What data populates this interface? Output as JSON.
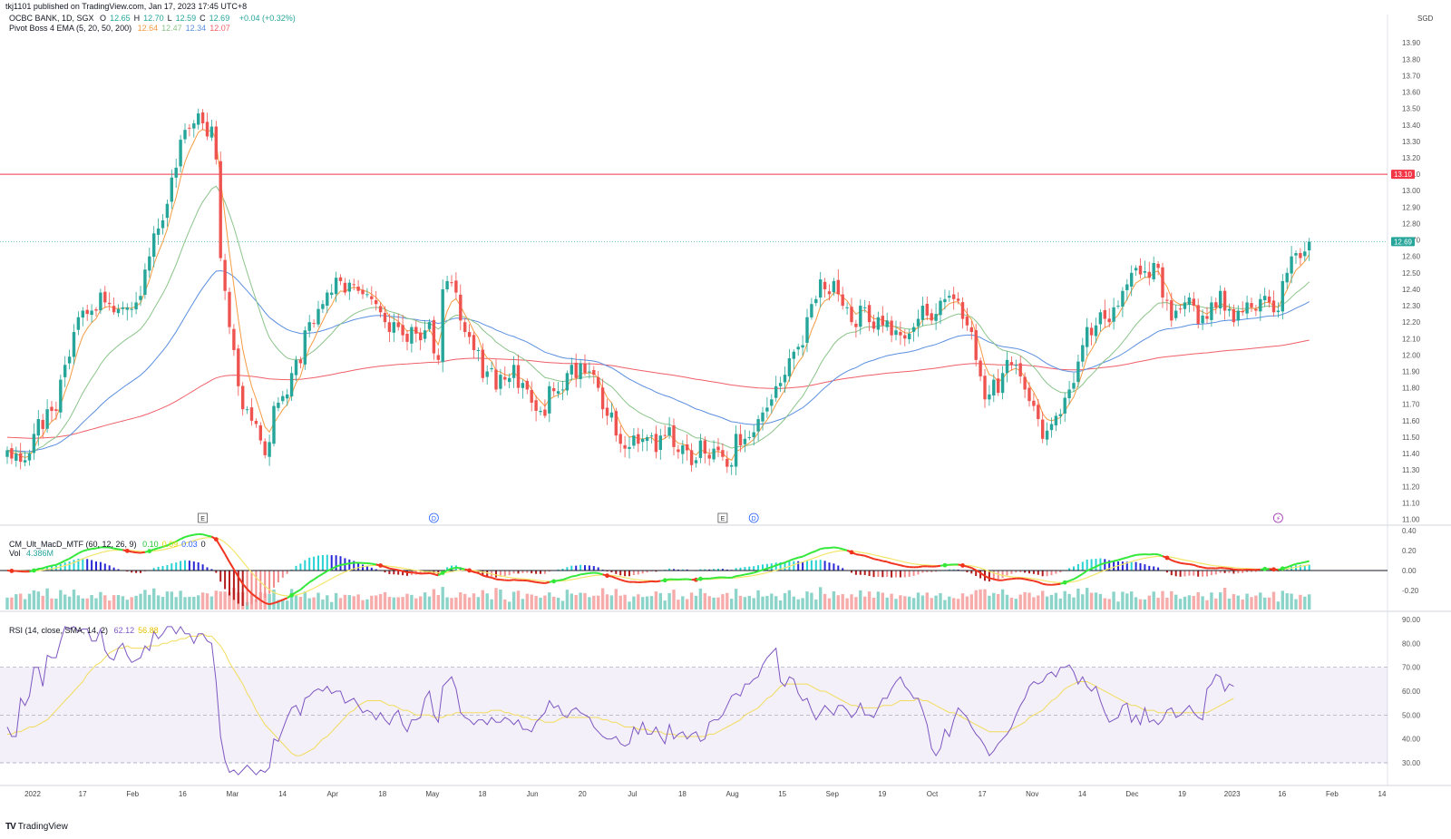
{
  "header": {
    "published": "tkj1101 published on TradingView.com, Jan 17, 2023 17:45 UTC+8",
    "symbol": "OCBC BANK, 1D, SGX",
    "ohlc": [
      {
        "label": "O",
        "value": "12.65"
      },
      {
        "label": "H",
        "value": "12.70"
      },
      {
        "label": "L",
        "value": "12.59"
      },
      {
        "label": "C",
        "value": "12.69"
      }
    ],
    "change": "+0.04 (+0.32%)",
    "ema_title": "Pivot Boss 4 EMA (5, 20, 50, 200)",
    "ema_values": [
      "12.64",
      "12.47",
      "12.34",
      "12.07"
    ],
    "ema_colors": [
      "#f59b42",
      "#8bc48a",
      "#5b8fe0",
      "#ef5f67"
    ],
    "currency": "SGD"
  },
  "macd_header": {
    "title": "CM_Ult_MacD_MTF (60, 12, 26, 9)",
    "values": [
      "0.10",
      "0.09",
      "0.03",
      "0"
    ],
    "colors": [
      "#22c532",
      "#e6d600",
      "#2962ff",
      "#131722"
    ],
    "vol_label": "Vol",
    "vol_value": "4.386M"
  },
  "rsi_header": {
    "title": "RSI (14, close, SMA, 14, 2)",
    "values": [
      "62.12",
      "56.88"
    ],
    "colors": [
      "#7e57c2",
      "#e6c200"
    ]
  },
  "brand": "TradingView",
  "chart_data": {
    "type": "candlestick",
    "symbol": "OCBC BANK",
    "interval": "1D",
    "price_axis": [
      "13.90",
      "13.80",
      "13.70",
      "13.60",
      "13.50",
      "13.40",
      "13.30",
      "13.20",
      "13.10",
      "13.00",
      "12.90",
      "12.80",
      "12.70",
      "12.60",
      "12.50",
      "12.40",
      "12.30",
      "12.20",
      "12.10",
      "12.00",
      "11.90",
      "11.80",
      "11.70",
      "11.60",
      "11.50",
      "11.40",
      "11.30",
      "11.20",
      "11.10",
      "11.00"
    ],
    "ylim": [
      10.97,
      14.05
    ],
    "macd_axis": [
      "0.40",
      "0.20",
      "0.00",
      "-0.20"
    ],
    "rsi_axis": [
      "90.00",
      "80.00",
      "70.00",
      "60.00",
      "50.00",
      "40.00",
      "30.00"
    ],
    "time_axis": [
      "2022",
      "17",
      "Feb",
      "16",
      "Mar",
      "14",
      "Apr",
      "18",
      "May",
      "18",
      "Jun",
      "20",
      "Jul",
      "18",
      "Aug",
      "15",
      "Sep",
      "19",
      "Oct",
      "17",
      "Nov",
      "14",
      "Dec",
      "19",
      "2023",
      "16",
      "Feb",
      "14"
    ],
    "horizontal_line": {
      "value": 13.1,
      "label": "13.10",
      "color": "#f23645"
    },
    "last_price": {
      "value": 12.69,
      "label": "12.69",
      "color": "#26a69a"
    },
    "event_markers": [
      {
        "label": "E",
        "kind": "earnings",
        "x_index": 44
      },
      {
        "label": "D",
        "kind": "dividend",
        "x_index": 96
      },
      {
        "label": "E",
        "kind": "earnings",
        "x_index": 161
      },
      {
        "label": "D",
        "kind": "dividend",
        "x_index": 168
      },
      {
        "label": "⚡",
        "kind": "split",
        "x_index": 286
      }
    ],
    "close": [
      11.42,
      11.37,
      11.4,
      11.35,
      11.36,
      11.4,
      11.52,
      11.61,
      11.55,
      11.67,
      11.66,
      11.66,
      11.85,
      11.94,
      11.99,
      12.14,
      12.23,
      12.27,
      12.25,
      12.27,
      12.27,
      12.38,
      12.32,
      12.31,
      12.26,
      12.28,
      12.29,
      12.29,
      12.28,
      12.32,
      12.36,
      12.52,
      12.6,
      12.74,
      12.77,
      12.82,
      12.92,
      13.08,
      13.14,
      13.31,
      13.37,
      13.38,
      13.41,
      13.47,
      13.41,
      13.33,
      13.39,
      13.19,
      12.59,
      12.39,
      12.17,
      12.03,
      11.81,
      11.67,
      11.67,
      11.6,
      11.58,
      11.48,
      11.39,
      11.47,
      11.69,
      11.71,
      11.75,
      11.76,
      11.89,
      11.97,
      11.95,
      12.15,
      12.2,
      12.19,
      12.28,
      12.31,
      12.38,
      12.38,
      12.47,
      12.45,
      12.38,
      12.44,
      12.43,
      12.39,
      12.37,
      12.37,
      12.34,
      12.31,
      12.26,
      12.2,
      12.14,
      12.2,
      12.17,
      12.12,
      12.08,
      12.17,
      12.13,
      12.09,
      12.15,
      12.2,
      12.01,
      11.97,
      12.4,
      12.45,
      12.44,
      12.38,
      12.21,
      12.14,
      12.11,
      12.03,
      12.03,
      11.86,
      11.9,
      11.92,
      11.79,
      11.88,
      11.85,
      11.86,
      11.94,
      11.8,
      11.83,
      11.79,
      11.71,
      11.66,
      11.66,
      11.63,
      11.81,
      11.78,
      11.78,
      11.79,
      11.89,
      11.94,
      11.86,
      11.95,
      11.89,
      11.9,
      11.88,
      11.8,
      11.67,
      11.63,
      11.65,
      11.51,
      11.46,
      11.43,
      11.44,
      11.51,
      11.46,
      11.49,
      11.5,
      11.51,
      11.41,
      11.51,
      11.51,
      11.56,
      11.44,
      11.41,
      11.45,
      11.42,
      11.33,
      11.36,
      11.48,
      11.4,
      11.37,
      11.43,
      11.42,
      11.38,
      11.32,
      11.33,
      11.52,
      11.45,
      11.49,
      11.5,
      11.53,
      11.61,
      11.65,
      11.68,
      11.73,
      11.81,
      11.83,
      11.88,
      11.98,
      12.02,
      12.05,
      12.06,
      12.23,
      12.31,
      12.34,
      12.46,
      12.4,
      12.37,
      12.45,
      12.37,
      12.3,
      12.29,
      12.2,
      12.17,
      12.3,
      12.29,
      12.2,
      12.16,
      12.23,
      12.18,
      12.21,
      12.12,
      12.15,
      12.12,
      12.1,
      12.13,
      12.17,
      12.22,
      12.3,
      12.24,
      12.21,
      12.25,
      12.33,
      12.34,
      12.36,
      12.34,
      12.33,
      12.22,
      12.18,
      12.14,
      11.97,
      11.87,
      11.73,
      11.76,
      11.85,
      11.77,
      11.89,
      11.97,
      11.94,
      11.94,
      11.87,
      11.79,
      11.72,
      11.69,
      11.61,
      11.49,
      11.54,
      11.58,
      11.63,
      11.64,
      11.74,
      11.79,
      11.83,
      11.96,
      12.06,
      12.17,
      12.12,
      12.18,
      12.26,
      12.22,
      12.2,
      12.29,
      12.3,
      12.39,
      12.43,
      12.5,
      12.53,
      12.49,
      12.51,
      12.47,
      12.56,
      12.53,
      12.35,
      12.33,
      12.21,
      12.27,
      12.28,
      12.32,
      12.35,
      12.3,
      12.19,
      12.24,
      12.22,
      12.32,
      12.29,
      12.39,
      12.27,
      12.28,
      12.2,
      12.27,
      12.26,
      12.32,
      12.29,
      12.27,
      12.34,
      12.36,
      12.32,
      12.26,
      12.27,
      12.45,
      12.5,
      12.6,
      12.62,
      12.59,
      12.63,
      12.69
    ],
    "rsi_values": [
      45,
      41,
      41,
      57,
      54,
      58,
      70,
      70,
      62,
      75,
      74,
      74,
      81,
      87,
      86,
      87,
      85,
      86,
      86,
      81,
      81,
      86,
      77,
      74,
      73,
      78,
      80,
      75,
      72,
      73,
      74,
      79,
      77,
      85,
      82,
      84,
      87,
      87,
      84,
      87,
      84,
      84,
      80,
      84,
      84,
      81,
      80,
      64,
      41,
      31,
      26,
      27,
      25,
      27,
      29,
      27,
      25,
      27,
      26,
      28,
      40,
      39,
      44,
      49,
      53,
      54,
      50,
      57,
      58,
      60,
      61,
      60,
      62,
      59,
      60,
      60,
      55,
      56,
      57,
      54,
      51,
      52,
      51,
      48,
      51,
      48,
      46,
      50,
      52,
      46,
      43,
      48,
      48,
      49,
      57,
      60,
      50,
      47,
      62,
      64,
      66,
      61,
      51,
      49,
      48,
      46,
      48,
      48,
      46,
      49,
      47,
      47,
      49,
      48,
      46,
      48,
      44,
      44,
      43,
      47,
      49,
      51,
      56,
      53,
      54,
      50,
      49,
      52,
      53,
      51,
      50,
      49,
      45,
      43,
      41,
      40,
      40,
      41,
      38,
      37,
      38,
      45,
      42,
      47,
      42,
      42,
      45,
      41,
      38,
      46,
      40,
      42,
      43,
      40,
      42,
      43,
      39,
      40,
      47,
      48,
      48,
      50,
      54,
      58,
      59,
      58,
      63,
      63,
      65,
      66,
      71,
      74,
      76,
      78,
      64,
      62,
      66,
      65,
      59,
      56,
      57,
      52,
      48,
      51,
      54,
      52,
      50,
      54,
      54,
      52,
      49,
      51,
      55,
      50,
      50,
      49,
      53,
      57,
      57,
      61,
      64,
      66,
      62,
      60,
      57,
      57,
      52,
      46,
      36,
      33,
      36,
      44,
      41,
      48,
      53,
      51,
      49,
      45,
      42,
      40,
      37,
      33,
      35,
      38,
      40,
      42,
      45,
      50,
      54,
      57,
      62,
      64,
      63,
      64,
      67,
      68,
      66,
      70,
      70,
      71,
      68,
      63,
      66,
      62,
      60,
      62,
      56,
      51,
      47,
      48,
      49,
      54,
      55,
      47,
      50,
      46,
      53,
      47,
      48,
      46,
      48,
      52,
      53,
      49,
      50,
      52,
      54,
      51,
      49,
      48,
      61,
      63,
      67,
      66,
      60,
      63,
      62
    ],
    "rsi_sma_values": [
      42,
      42,
      43,
      43,
      44,
      45,
      45,
      46,
      47,
      48,
      50,
      52,
      54,
      56,
      58,
      60,
      62,
      64,
      67,
      69,
      71,
      72,
      74,
      76,
      77,
      78,
      78,
      79,
      78,
      78,
      78,
      78,
      79,
      79,
      79,
      80,
      80,
      81,
      81,
      82,
      82,
      83,
      83,
      83,
      84,
      83,
      83,
      81,
      79,
      76,
      72,
      69,
      66,
      63,
      59,
      56,
      52,
      49,
      46,
      44,
      42,
      40,
      38,
      36,
      34,
      33,
      33,
      34,
      35,
      36,
      38,
      40,
      41,
      43,
      45,
      47,
      49,
      51,
      52,
      54,
      55,
      56,
      56,
      56,
      56,
      55,
      54,
      54,
      53,
      52,
      52,
      51,
      50,
      50,
      50,
      50,
      49,
      49,
      49,
      50,
      50,
      51,
      51,
      51,
      51,
      51,
      51,
      51,
      51,
      52,
      52,
      52,
      51,
      51,
      50,
      50,
      49,
      49,
      48,
      48,
      48,
      47,
      47,
      47,
      48,
      49,
      49,
      49,
      49,
      49,
      49,
      49,
      49,
      49,
      48,
      48,
      47,
      47,
      46,
      45,
      45,
      45,
      44,
      44,
      44,
      43,
      43,
      43,
      42,
      42,
      42,
      41,
      41,
      41,
      41,
      41,
      41,
      41,
      42,
      42,
      43,
      44,
      45,
      46,
      47,
      48,
      50,
      51,
      52,
      53,
      55,
      57,
      58,
      60,
      62,
      63,
      63,
      63,
      63,
      63,
      63,
      62,
      61,
      60,
      60,
      59,
      58,
      57,
      56,
      55,
      54,
      54,
      53,
      53,
      53,
      53,
      53,
      54,
      54,
      54,
      55,
      56,
      56,
      56,
      56,
      57,
      56,
      56,
      55,
      54,
      53,
      52,
      51,
      51,
      50,
      49,
      48,
      47,
      46,
      45,
      44,
      43,
      43,
      43,
      43,
      43,
      44,
      45,
      46,
      47,
      49,
      50,
      51,
      52,
      54,
      56,
      57,
      59,
      61,
      62,
      63,
      64,
      64,
      64,
      63,
      62,
      61,
      60,
      59,
      58,
      57,
      56,
      55,
      54,
      54,
      53,
      52,
      52,
      52,
      51,
      51,
      51,
      51,
      51,
      51,
      51,
      51,
      51,
      51,
      51,
      51,
      52,
      53,
      54,
      55,
      56,
      57
    ]
  }
}
